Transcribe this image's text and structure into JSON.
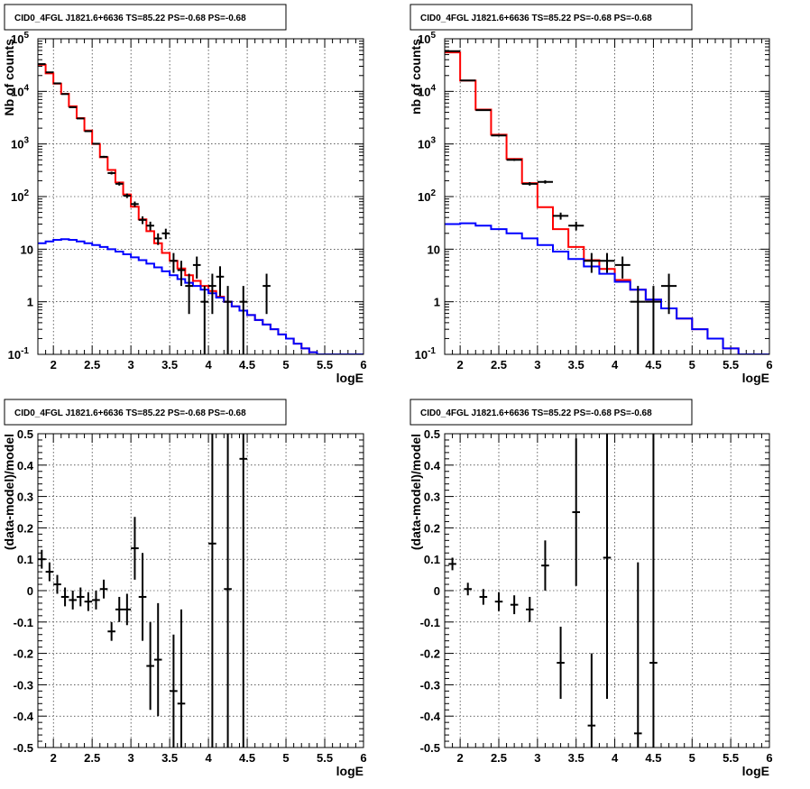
{
  "chart_data": [
    {
      "type": "line",
      "title": "CID0_4FGL J1821.6+6636 TS=85.22 PS=-0.68 PS=-0.68",
      "xlabel": "logE",
      "ylabel": "Nb of counts",
      "xlim": [
        1.8,
        6.0
      ],
      "ylim": [
        0.1,
        100000
      ],
      "yscale": "log",
      "grid": true,
      "x_ticks": [
        "2",
        "2.5",
        "3",
        "3.5",
        "4",
        "4.5",
        "5",
        "5.5",
        "6"
      ],
      "y_ticks": [
        "10^-1",
        "1",
        "10",
        "10^2",
        "10^3",
        "10^4",
        "10^5"
      ],
      "bin_edges": [
        1.8,
        1.9,
        2.0,
        2.1,
        2.2,
        2.3,
        2.4,
        2.5,
        2.6,
        2.7,
        2.8,
        2.9,
        3.0,
        3.1,
        3.2,
        3.3,
        3.4,
        3.5,
        3.6,
        3.7,
        3.8,
        3.9,
        4.0,
        4.1,
        4.2,
        4.3,
        4.4,
        4.5,
        4.6,
        4.7,
        4.8,
        4.9,
        5.0,
        5.1,
        5.2,
        5.3,
        5.4,
        5.5,
        5.6,
        5.7,
        5.8,
        5.9,
        6.0
      ],
      "series": [
        {
          "name": "",
          "kind": "step",
          "color": "#ff0000",
          "values": [
            32000,
            22000,
            14000,
            9000,
            5200,
            3100,
            1800,
            1000,
            560,
            320,
            185,
            110,
            64,
            37,
            22,
            13,
            8.5,
            6,
            4.3,
            3.2,
            2.5,
            2.0,
            1.6,
            1.25,
            1.0,
            0.82,
            0.68,
            0.56,
            0.45,
            0.37,
            0.3,
            0.24,
            0.2,
            0.16,
            0.13,
            0.11,
            0.1,
            0.1,
            0.1,
            0.1,
            0.1,
            0.1
          ]
        },
        {
          "name": "",
          "kind": "step",
          "color": "#0000ff",
          "values": [
            13,
            14,
            15,
            15.5,
            15,
            14,
            13,
            12,
            11,
            10,
            9,
            8,
            7,
            6.2,
            5.3,
            4.5,
            3.8,
            3.2,
            2.7,
            2.3,
            2.0,
            1.7,
            1.45,
            1.2,
            1.0,
            0.82,
            0.68,
            0.56,
            0.45,
            0.37,
            0.3,
            0.24,
            0.2,
            0.16,
            0.13,
            0.11,
            0.1,
            0.1,
            0.1,
            0.1,
            0.1,
            0.1
          ]
        },
        {
          "name": "",
          "kind": "points",
          "color": "#000000",
          "points": [
            {
              "x": 1.85,
              "y": 33000
            },
            {
              "x": 1.95,
              "y": 23000
            },
            {
              "x": 2.05,
              "y": 14200
            },
            {
              "x": 2.15,
              "y": 8900
            },
            {
              "x": 2.25,
              "y": 5000
            },
            {
              "x": 2.35,
              "y": 3050
            },
            {
              "x": 2.45,
              "y": 1750
            },
            {
              "x": 2.55,
              "y": 1010
            },
            {
              "x": 2.65,
              "y": 570
            },
            {
              "x": 2.75,
              "y": 280
            },
            {
              "x": 2.85,
              "y": 175
            },
            {
              "x": 2.95,
              "y": 104
            },
            {
              "x": 3.05,
              "y": 72
            },
            {
              "x": 3.15,
              "y": 36
            },
            {
              "x": 3.25,
              "y": 28
            },
            {
              "x": 3.35,
              "y": 16
            },
            {
              "x": 3.45,
              "y": 20
            },
            {
              "x": 3.55,
              "y": 6
            },
            {
              "x": 3.65,
              "y": 4
            },
            {
              "x": 3.75,
              "y": 2
            },
            {
              "x": 3.85,
              "y": 5
            },
            {
              "x": 3.95,
              "y": 1
            },
            {
              "x": 4.05,
              "y": 2
            },
            {
              "x": 4.15,
              "y": 3
            },
            {
              "x": 4.25,
              "y": 1
            },
            {
              "x": 4.45,
              "y": 1
            },
            {
              "x": 4.75,
              "y": 2
            }
          ]
        }
      ]
    },
    {
      "type": "line",
      "title": "CID0_4FGL J1821.6+6636 TS=85.22 PS=-0.68 PS=-0.68",
      "xlabel": "logE",
      "ylabel": "nb of counts",
      "xlim": [
        1.8,
        6.0
      ],
      "ylim": [
        0.1,
        100000
      ],
      "yscale": "log",
      "grid": true,
      "x_ticks": [
        "2",
        "2.5",
        "3",
        "3.5",
        "4",
        "4.5",
        "5",
        "5.5",
        "6"
      ],
      "y_ticks": [
        "10^-1",
        "1",
        "10",
        "10^2",
        "10^3",
        "10^4",
        "10^5"
      ],
      "bin_edges": [
        1.8,
        2.0,
        2.2,
        2.4,
        2.6,
        2.8,
        3.0,
        3.2,
        3.4,
        3.6,
        3.8,
        4.0,
        4.2,
        4.4,
        4.6,
        4.8,
        5.0,
        5.2,
        5.4,
        5.6,
        5.8,
        6.0
      ],
      "series": [
        {
          "name": "",
          "kind": "step",
          "color": "#ff0000",
          "values": [
            55000,
            16000,
            4500,
            1500,
            520,
            180,
            63,
            24,
            11,
            6.2,
            4.2,
            2.6,
            1.7,
            1.1,
            0.75,
            0.48,
            0.3,
            0.2,
            0.13,
            0.1,
            0.1
          ]
        },
        {
          "name": "",
          "kind": "step",
          "color": "#0000ff",
          "values": [
            30,
            31,
            28,
            24,
            20,
            16,
            12,
            9,
            6.5,
            4.7,
            3.4,
            2.4,
            1.7,
            1.1,
            0.75,
            0.48,
            0.3,
            0.2,
            0.13,
            0.1,
            0.1
          ]
        },
        {
          "name": "",
          "kind": "points",
          "color": "#000000",
          "points": [
            {
              "x": 1.9,
              "y": 58000
            },
            {
              "x": 2.1,
              "y": 16100
            },
            {
              "x": 2.3,
              "y": 4400
            },
            {
              "x": 2.5,
              "y": 1450
            },
            {
              "x": 2.7,
              "y": 500
            },
            {
              "x": 2.9,
              "y": 175
            },
            {
              "x": 3.1,
              "y": 190
            },
            {
              "x": 3.3,
              "y": 43
            },
            {
              "x": 3.5,
              "y": 28
            },
            {
              "x": 3.7,
              "y": 6
            },
            {
              "x": 3.9,
              "y": 6
            },
            {
              "x": 4.1,
              "y": 5
            },
            {
              "x": 4.3,
              "y": 1
            },
            {
              "x": 4.5,
              "y": 1
            },
            {
              "x": 4.7,
              "y": 2
            }
          ]
        }
      ]
    },
    {
      "type": "scatter",
      "title": "CID0_4FGL J1821.6+6636 TS=85.22 PS=-0.68 PS=-0.68",
      "xlabel": "logE",
      "ylabel": "(data-model)/model",
      "xlim": [
        1.8,
        6.0
      ],
      "ylim": [
        -0.5,
        0.5
      ],
      "grid": true,
      "x_ticks": [
        "2",
        "2.5",
        "3",
        "3.5",
        "4",
        "4.5",
        "5",
        "5.5",
        "6"
      ],
      "y_ticks": [
        "-0.5",
        "-0.4",
        "-0.3",
        "-0.2",
        "-0.1",
        "0",
        "0.1",
        "0.2",
        "0.3",
        "0.4",
        "0.5"
      ],
      "series": [
        {
          "name": "",
          "color": "#000000",
          "points": [
            {
              "x": 1.85,
              "y": 0.1,
              "err": 0.03
            },
            {
              "x": 1.95,
              "y": 0.06,
              "err": 0.03
            },
            {
              "x": 2.05,
              "y": 0.02,
              "err": 0.03
            },
            {
              "x": 2.15,
              "y": -0.02,
              "err": 0.03
            },
            {
              "x": 2.25,
              "y": -0.03,
              "err": 0.03
            },
            {
              "x": 2.35,
              "y": -0.02,
              "err": 0.03
            },
            {
              "x": 2.45,
              "y": -0.035,
              "err": 0.03
            },
            {
              "x": 2.55,
              "y": -0.03,
              "err": 0.03
            },
            {
              "x": 2.65,
              "y": 0.005,
              "err": 0.03
            },
            {
              "x": 2.75,
              "y": -0.13,
              "err": 0.03
            },
            {
              "x": 2.85,
              "y": -0.06,
              "err": 0.04
            },
            {
              "x": 2.95,
              "y": -0.06,
              "err": 0.05
            },
            {
              "x": 3.05,
              "y": 0.135,
              "err": 0.1
            },
            {
              "x": 3.15,
              "y": -0.02,
              "err": 0.14
            },
            {
              "x": 3.25,
              "y": -0.24,
              "err": 0.14
            },
            {
              "x": 3.35,
              "y": -0.22,
              "err": 0.18
            },
            {
              "x": 3.55,
              "y": -0.32,
              "err": 0.18
            },
            {
              "x": 3.65,
              "y": -0.36,
              "err": 0.3
            },
            {
              "x": 4.05,
              "y": 0.15,
              "err": 0.7
            },
            {
              "x": 4.25,
              "y": 0.005,
              "err": 0.7
            },
            {
              "x": 4.45,
              "y": 0.42,
              "err": 1.0
            }
          ]
        }
      ]
    },
    {
      "type": "scatter",
      "title": "CID0_4FGL J1821.6+6636 TS=85.22 PS=-0.68 PS=-0.68",
      "xlabel": "logE",
      "ylabel": "(data-model)/model",
      "xlim": [
        1.8,
        6.0
      ],
      "ylim": [
        -0.5,
        0.5
      ],
      "grid": true,
      "x_ticks": [
        "2",
        "2.5",
        "3",
        "3.5",
        "4",
        "4.5",
        "5",
        "5.5",
        "6"
      ],
      "y_ticks": [
        "-0.5",
        "-0.4",
        "-0.3",
        "-0.2",
        "-0.1",
        "0",
        "0.1",
        "0.2",
        "0.3",
        "0.4",
        "0.5"
      ],
      "series": [
        {
          "name": "",
          "color": "#000000",
          "points": [
            {
              "x": 1.9,
              "y": 0.085,
              "err": 0.02
            },
            {
              "x": 2.1,
              "y": 0.005,
              "err": 0.02
            },
            {
              "x": 2.3,
              "y": -0.02,
              "err": 0.025
            },
            {
              "x": 2.5,
              "y": -0.035,
              "err": 0.03
            },
            {
              "x": 2.7,
              "y": -0.045,
              "err": 0.03
            },
            {
              "x": 2.9,
              "y": -0.06,
              "err": 0.04
            },
            {
              "x": 3.1,
              "y": 0.08,
              "err": 0.08
            },
            {
              "x": 3.3,
              "y": -0.23,
              "err": 0.115
            },
            {
              "x": 3.5,
              "y": 0.25,
              "err": 0.235
            },
            {
              "x": 3.7,
              "y": -0.43,
              "err": 0.23
            },
            {
              "x": 3.9,
              "y": 0.105,
              "err": 0.45
            },
            {
              "x": 4.3,
              "y": -0.455,
              "err": 0.545
            },
            {
              "x": 4.5,
              "y": -0.23,
              "err": 0.8
            }
          ]
        }
      ]
    }
  ]
}
